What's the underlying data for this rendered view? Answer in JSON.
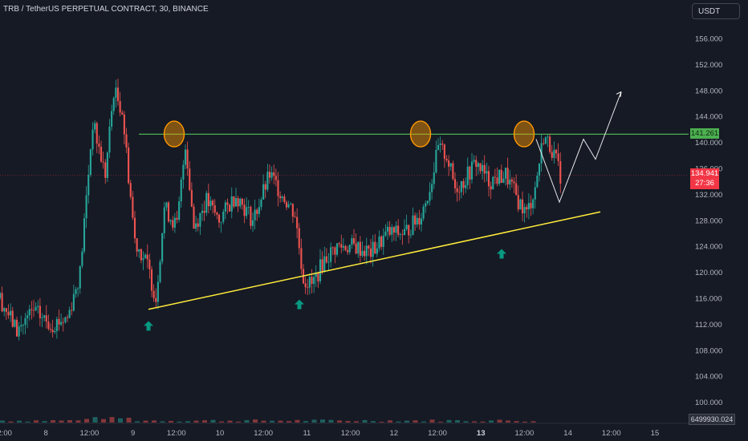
{
  "header": {
    "title": "TRB / TetherUS PERPETUAL CONTRACT, 30, BINANCE"
  },
  "currency_button": {
    "label": "USDT"
  },
  "resistance_tag": {
    "value": "141.261"
  },
  "last_price_tag": {
    "price": "134.941",
    "countdown": "27:36"
  },
  "volume_label": {
    "value": "6499930.024"
  },
  "colors": {
    "background": "#161a25",
    "up": "#26a69a",
    "down": "#ef5350",
    "resistance": "#4caf50",
    "support": "#ffeb3b",
    "highlight": "#ff9800",
    "arrow": "#089981",
    "projection": "#ffffff"
  },
  "chart_data": {
    "type": "candlestick",
    "title": "TRB / TetherUS PERPETUAL CONTRACT, 30, BINANCE",
    "y_ticks": [
      "156.000",
      "152.000",
      "148.000",
      "144.000",
      "140.000",
      "136.000",
      "132.000",
      "128.000",
      "124.000",
      "120.000",
      "116.000",
      "112.000",
      "108.000",
      "104.000",
      "100.000"
    ],
    "x_ticks": [
      "12:00",
      "8",
      "12:00",
      "9",
      "12:00",
      "10",
      "12:00",
      "11",
      "12:00",
      "12",
      "12:00",
      "13",
      "12:00",
      "14",
      "12:00",
      "15"
    ],
    "ylim": [
      98,
      158
    ],
    "price_path": [
      {
        "t": 0,
        "price": 116
      },
      {
        "t": 2,
        "price": 111
      },
      {
        "t": 4,
        "price": 114
      },
      {
        "t": 6,
        "price": 112
      },
      {
        "t": 8,
        "price": 113
      },
      {
        "t": 9.5,
        "price": 120
      },
      {
        "t": 11,
        "price": 143
      },
      {
        "t": 12.5,
        "price": 135
      },
      {
        "t": 13.5,
        "price": 148
      },
      {
        "t": 14.5,
        "price": 145
      },
      {
        "t": 16,
        "price": 125
      },
      {
        "t": 17.5,
        "price": 121
      },
      {
        "t": 18.5,
        "price": 116
      },
      {
        "t": 19.5,
        "price": 130
      },
      {
        "t": 21,
        "price": 127
      },
      {
        "t": 22,
        "price": 140
      },
      {
        "t": 23,
        "price": 127
      },
      {
        "t": 24.5,
        "price": 131
      },
      {
        "t": 26,
        "price": 128
      },
      {
        "t": 28,
        "price": 132
      },
      {
        "t": 30,
        "price": 128
      },
      {
        "t": 32,
        "price": 135
      },
      {
        "t": 34,
        "price": 131
      },
      {
        "t": 35,
        "price": 129
      },
      {
        "t": 36,
        "price": 119
      },
      {
        "t": 37,
        "price": 118
      },
      {
        "t": 38.5,
        "price": 122
      },
      {
        "t": 40,
        "price": 124
      },
      {
        "t": 42,
        "price": 124
      },
      {
        "t": 44,
        "price": 123
      },
      {
        "t": 46,
        "price": 126
      },
      {
        "t": 48,
        "price": 126
      },
      {
        "t": 50,
        "price": 129
      },
      {
        "t": 51,
        "price": 133
      },
      {
        "t": 52,
        "price": 139
      },
      {
        "t": 53,
        "price": 138
      },
      {
        "t": 54,
        "price": 133
      },
      {
        "t": 55,
        "price": 134
      },
      {
        "t": 56.5,
        "price": 137
      },
      {
        "t": 58,
        "price": 134
      },
      {
        "t": 60,
        "price": 135
      },
      {
        "t": 61.5,
        "price": 131
      },
      {
        "t": 62.5,
        "price": 129
      },
      {
        "t": 63.5,
        "price": 133
      },
      {
        "t": 64.5,
        "price": 141
      },
      {
        "t": 65.5,
        "price": 139
      },
      {
        "t": 66.5,
        "price": 135
      }
    ],
    "annotations": {
      "resistance_level": 141.261,
      "support_line": [
        {
          "x": 185,
          "price": 114.3
        },
        {
          "x": 748,
          "price": 129.3
        }
      ],
      "touch_circles": [
        {
          "x": 217,
          "price": 141.3
        },
        {
          "x": 524,
          "price": 141.3
        },
        {
          "x": 653,
          "price": 141.3
        }
      ],
      "up_arrows": [
        {
          "x": 185,
          "price": 112.5
        },
        {
          "x": 373,
          "price": 115.8
        },
        {
          "x": 625,
          "price": 123.6
        }
      ],
      "projection_path": [
        {
          "x": 668,
          "price": 140.5
        },
        {
          "x": 697,
          "price": 130.8
        },
        {
          "x": 727,
          "price": 140.5
        },
        {
          "x": 742,
          "price": 137.4
        },
        {
          "x": 774,
          "price": 147.8
        }
      ]
    }
  }
}
